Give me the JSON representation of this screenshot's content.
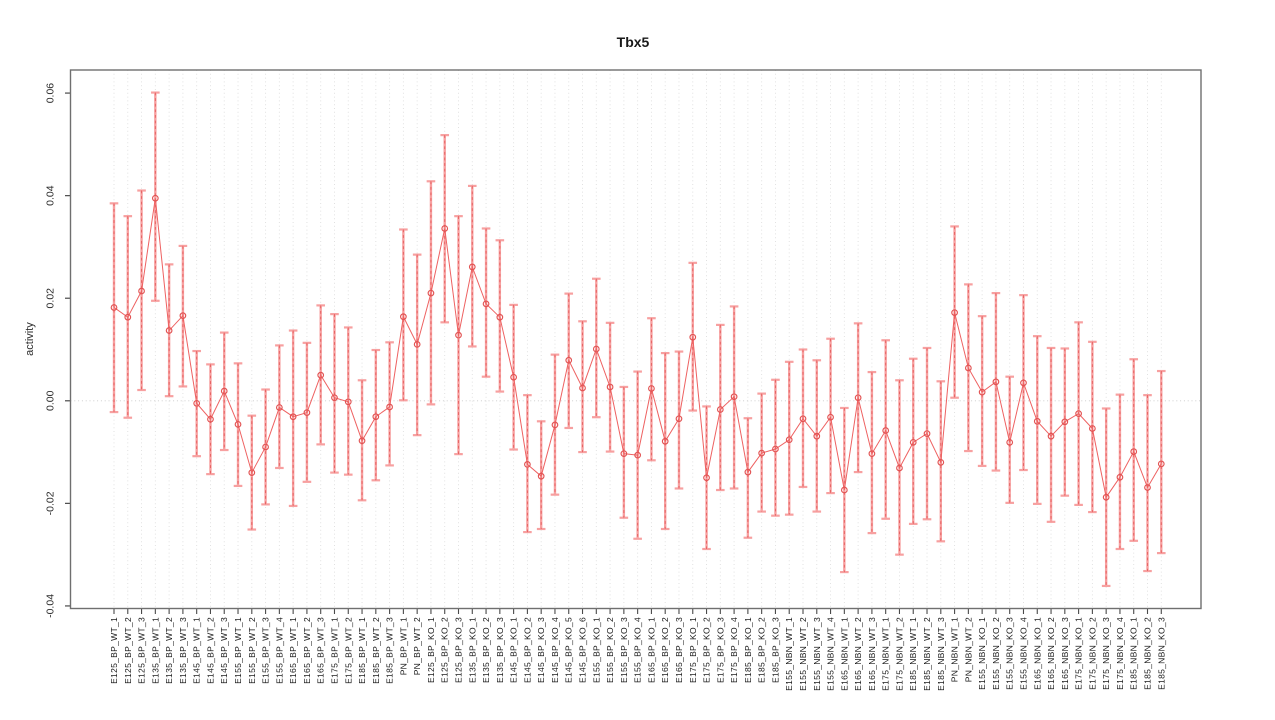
{
  "chart_data": {
    "type": "scatter",
    "subtype": "means-with-error-bars",
    "title": "Tbx5",
    "ylabel": "activity",
    "xlabel": "",
    "legend": "none",
    "grid": {
      "vertical_dotted_per_category": true,
      "horizontal_dotted_at_zero": true
    },
    "ylim": [
      -0.0405,
      0.0645
    ],
    "yticks": [
      -0.04,
      -0.02,
      0.0,
      0.02,
      0.04,
      0.06
    ],
    "colors": {
      "point": "#e25353",
      "line": "#ee6161",
      "bar": "#f7a0a0",
      "grid": "#dedede",
      "zero_line": "#c8c8c8",
      "axis": "#6f6f6f",
      "tick": "#4a4a4a"
    },
    "categories": [
      "E125_BP_WT_1",
      "E125_BP_WT_2",
      "E125_BP_WT_3",
      "E135_BP_WT_1",
      "E135_BP_WT_2",
      "E135_BP_WT_3",
      "E145_BP_WT_1",
      "E145_BP_WT_2",
      "E145_BP_WT_3",
      "E155_BP_WT_1",
      "E155_BP_WT_2",
      "E155_BP_WT_3",
      "E155_BP_WT_4",
      "E165_BP_WT_1",
      "E165_BP_WT_2",
      "E165_BP_WT_3",
      "E175_BP_WT_1",
      "E175_BP_WT_2",
      "E185_BP_WT_1",
      "E185_BP_WT_2",
      "E185_BP_WT_3",
      "PN_BP_WT_1",
      "PN_BP_WT_2",
      "E125_BP_KO_1",
      "E125_BP_KO_2",
      "E125_BP_KO_3",
      "E135_BP_KO_1",
      "E135_BP_KO_2",
      "E135_BP_KO_3",
      "E145_BP_KO_1",
      "E145_BP_KO_2",
      "E145_BP_KO_3",
      "E145_BP_KO_4",
      "E145_BP_KO_5",
      "E145_BP_KO_6",
      "E155_BP_KO_1",
      "E155_BP_KO_2",
      "E155_BP_KO_3",
      "E155_BP_KO_4",
      "E165_BP_KO_1",
      "E165_BP_KO_2",
      "E165_BP_KO_3",
      "E175_BP_KO_1",
      "E175_BP_KO_2",
      "E175_BP_KO_3",
      "E175_BP_KO_4",
      "E185_BP_KO_1",
      "E185_BP_KO_2",
      "E185_BP_KO_3",
      "E155_NBN_WT_1",
      "E155_NBN_WT_2",
      "E155_NBN_WT_3",
      "E155_NBN_WT_4",
      "E165_NBN_WT_1",
      "E165_NBN_WT_2",
      "E165_NBN_WT_3",
      "E175_NBN_WT_1",
      "E175_NBN_WT_2",
      "E185_NBN_WT_1",
      "E185_NBN_WT_2",
      "E185_NBN_WT_3",
      "PN_NBN_WT_1",
      "PN_NBN_WT_2",
      "E155_NBN_KO_1",
      "E155_NBN_KO_2",
      "E155_NBN_KO_3",
      "E155_NBN_KO_4",
      "E165_NBN_KO_1",
      "E165_NBN_KO_2",
      "E165_NBN_KO_3",
      "E175_NBN_KO_1",
      "E175_NBN_KO_2",
      "E175_NBN_KO_3",
      "E175_NBN_KO_4",
      "E185_NBN_KO_1",
      "E185_NBN_KO_2",
      "E185_NBN_KO_3"
    ],
    "series": [
      {
        "name": "mean",
        "values": [
          0.0182,
          0.0163,
          0.0214,
          0.0395,
          0.0137,
          0.0166,
          -0.0005,
          -0.0036,
          0.0019,
          -0.0046,
          -0.014,
          -0.009,
          -0.0013,
          -0.0031,
          -0.0023,
          0.005,
          0.0006,
          -0.0002,
          -0.0078,
          -0.0031,
          -0.0012,
          0.0164,
          0.011,
          0.021,
          0.0336,
          0.0128,
          0.0261,
          0.0189,
          0.0163,
          0.0046,
          -0.0124,
          -0.0147,
          -0.0047,
          0.0079,
          0.0025,
          0.0101,
          0.0027,
          -0.0103,
          -0.0106,
          0.0024,
          -0.0079,
          -0.0035,
          0.0124,
          -0.015,
          -0.0017,
          0.0008,
          -0.0139,
          -0.0102,
          -0.0094,
          -0.0076,
          -0.0035,
          -0.0069,
          -0.0032,
          -0.0174,
          0.0006,
          -0.0103,
          -0.0058,
          -0.0131,
          -0.0081,
          -0.0064,
          -0.012,
          0.0172,
          0.0064,
          0.0017,
          0.0037,
          -0.0081,
          0.0035,
          -0.004,
          -0.0069,
          -0.0041,
          -0.0025,
          -0.0054,
          -0.0188,
          -0.0149,
          -0.0099,
          -0.0169,
          -0.0123
        ]
      },
      {
        "name": "lower",
        "values": [
          -0.0022,
          -0.0033,
          0.0021,
          0.0195,
          0.0009,
          0.0028,
          -0.0108,
          -0.0143,
          -0.0096,
          -0.0166,
          -0.0251,
          -0.0202,
          -0.0131,
          -0.0205,
          -0.0158,
          -0.0085,
          -0.014,
          -0.0144,
          -0.0194,
          -0.0155,
          -0.0126,
          0.0001,
          -0.0067,
          -0.0007,
          0.0153,
          -0.0104,
          0.0106,
          0.0047,
          0.0018,
          -0.0095,
          -0.0256,
          -0.025,
          -0.0183,
          -0.0053,
          -0.01,
          -0.0032,
          -0.0099,
          -0.0228,
          -0.0269,
          -0.0116,
          -0.025,
          -0.0171,
          -0.0019,
          -0.0289,
          -0.0174,
          -0.0171,
          -0.0267,
          -0.0216,
          -0.0224,
          -0.0222,
          -0.0168,
          -0.0216,
          -0.018,
          -0.0334,
          -0.0139,
          -0.0258,
          -0.023,
          -0.03,
          -0.024,
          -0.0231,
          -0.0274,
          0.0006,
          -0.0098,
          -0.0127,
          -0.0136,
          -0.0199,
          -0.0135,
          -0.0201,
          -0.0236,
          -0.0185,
          -0.0203,
          -0.0217,
          -0.0361,
          -0.0289,
          -0.0273,
          -0.0332,
          -0.0297
        ]
      },
      {
        "name": "upper",
        "values": [
          0.0385,
          0.036,
          0.041,
          0.0601,
          0.0266,
          0.0302,
          0.0097,
          0.0071,
          0.0133,
          0.0073,
          -0.0029,
          0.0022,
          0.0108,
          0.0137,
          0.0113,
          0.0186,
          0.0169,
          0.0143,
          0.004,
          0.0099,
          0.0114,
          0.0334,
          0.0285,
          0.0428,
          0.0518,
          0.036,
          0.0419,
          0.0336,
          0.0313,
          0.0187,
          0.0011,
          -0.004,
          0.009,
          0.0209,
          0.0155,
          0.0238,
          0.0152,
          0.0027,
          0.0057,
          0.0161,
          0.0093,
          0.0096,
          0.0269,
          -0.0011,
          0.0148,
          0.0184,
          -0.0034,
          0.0014,
          0.0041,
          0.0076,
          0.01,
          0.0079,
          0.0121,
          -0.0014,
          0.0151,
          0.0056,
          0.0118,
          0.004,
          0.0082,
          0.0103,
          0.0038,
          0.034,
          0.0227,
          0.0165,
          0.021,
          0.0047,
          0.0206,
          0.0126,
          0.0103,
          0.0102,
          0.0153,
          0.0115,
          -0.0015,
          0.0012,
          0.0081,
          0.0011,
          0.0058
        ]
      }
    ]
  }
}
